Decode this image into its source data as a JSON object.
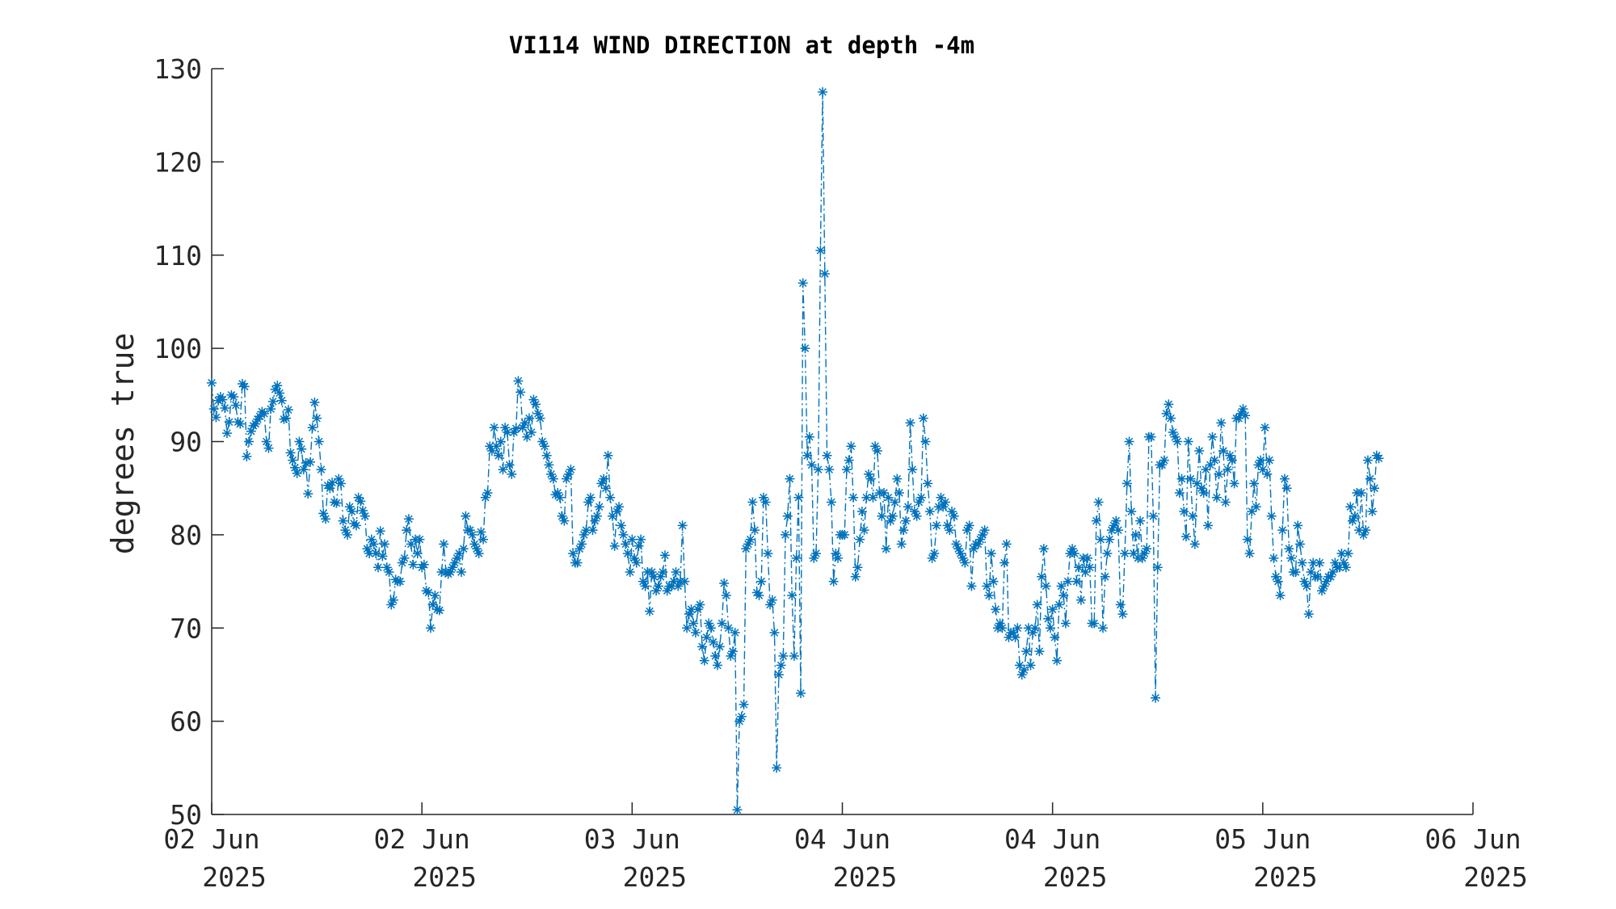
{
  "chart_data": {
    "type": "line",
    "title": "VI114 WIND DIRECTION at depth -4m",
    "xlabel": "",
    "ylabel": "degrees true",
    "ylim": [
      50,
      130
    ],
    "yticks": [
      50,
      60,
      70,
      80,
      90,
      100,
      110,
      120,
      130
    ],
    "xlim": [
      "2025-06-02T00:00",
      "2025-06-06T00:00"
    ],
    "xticks": [
      {
        "t": "2025-06-02T00:00",
        "line1": "02 Jun",
        "line2": "2025"
      },
      {
        "t": "2025-06-02T16:00",
        "line1": "02 Jun",
        "line2": "2025"
      },
      {
        "t": "2025-06-03T08:00",
        "line1": "03 Jun",
        "line2": "2025"
      },
      {
        "t": "2025-06-04T00:00",
        "line1": "04 Jun",
        "line2": "2025"
      },
      {
        "t": "2025-06-04T16:00",
        "line1": "04 Jun",
        "line2": "2025"
      },
      {
        "t": "2025-06-05T08:00",
        "line1": "05 Jun",
        "line2": "2025"
      },
      {
        "t": "2025-06-06T00:00",
        "line1": "06 Jun",
        "line2": "2025"
      }
    ],
    "grid": false,
    "marker": "asterisk",
    "line_style": "dash-dot",
    "color": "#0072BD",
    "series": [
      {
        "x_start": "2025-06-02T00:00",
        "x_step_minutes": 10,
        "values": [
          96.3,
          93.5,
          92.6,
          94.4,
          94.8,
          94.5,
          93.6,
          90.9,
          92.1,
          95.0,
          94.8,
          93.9,
          92.1,
          91.9,
          96.2,
          95.9,
          88.4,
          90.0,
          91.1,
          91.7,
          91.9,
          92.4,
          92.7,
          93.2,
          93.0,
          90.0,
          89.3,
          93.5,
          94.3,
          95.6,
          96.0,
          95.2,
          94.4,
          92.4,
          92.5,
          93.4,
          88.8,
          88.0,
          87.2,
          86.6,
          90.0,
          89.2,
          87.0,
          87.7,
          84.4,
          87.8,
          91.5,
          94.2,
          92.5,
          90.0,
          87.0,
          82.3,
          81.7,
          85.3,
          85.0,
          85.6,
          83.5,
          83.4,
          86.0,
          85.5,
          81.5,
          80.5,
          80.0,
          83.0,
          82.5,
          81.2,
          81.0,
          84.0,
          83.6,
          82.6,
          82.0,
          78.5,
          78.0,
          79.5,
          79.0,
          78.0,
          76.5,
          80.4,
          77.7,
          79.0,
          76.5,
          76.0,
          72.5,
          73.0,
          75.2,
          75.0,
          75.0,
          77.0,
          77.5,
          80.5,
          81.7,
          79.0,
          76.8,
          79.5,
          78.0,
          79.5,
          76.5,
          76.8,
          74.0,
          73.8,
          70.0,
          72.5,
          73.5,
          72.0,
          71.9,
          76.0,
          79.0,
          76.0,
          75.8,
          76.0,
          76.5,
          77.0,
          77.5,
          78.0,
          76.0,
          78.5,
          82.0,
          80.5,
          80.5,
          80.0,
          79.0,
          78.5,
          78.0,
          80.3,
          79.5,
          84.0,
          84.5,
          89.5,
          89.0,
          91.5,
          89.5,
          88.5,
          90.0,
          87.0,
          91.5,
          91.0,
          87.5,
          86.5,
          91.0,
          91.4,
          96.5,
          95.3,
          91.5,
          92.0,
          90.5,
          92.5,
          91.0,
          94.5,
          94.0,
          93.0,
          92.5,
          90.0,
          89.5,
          88.5,
          87.5,
          86.5,
          86.0,
          84.3,
          84.5,
          84.0,
          82.0,
          81.5,
          86.0,
          86.5,
          87.0,
          78.0,
          77.0,
          77.0,
          78.5,
          79.0,
          80.0,
          80.5,
          83.5,
          84.0,
          80.5,
          81.5,
          82.0,
          83.0,
          85.5,
          86.0,
          85.0,
          88.5,
          84.0,
          82.0,
          78.8,
          82.5,
          83.0,
          81.0,
          80.0,
          79.0,
          78.0,
          76.0,
          79.5,
          77.5,
          77.0,
          78.8,
          79.5,
          75.0,
          74.5,
          76.0,
          71.8,
          76.0,
          75.5,
          74.0,
          74.5,
          75.5,
          76.0,
          77.8,
          74.0,
          74.5,
          74.5,
          75.0,
          76.0,
          74.5,
          75.0,
          81.0,
          75.0,
          70.0,
          71.5,
          72.0,
          70.5,
          69.5,
          72.0,
          72.5,
          68.0,
          66.5,
          69.0,
          70.5,
          70.0,
          68.5,
          67.0,
          66.0,
          68.0,
          70.5,
          74.8,
          73.5,
          70.0,
          67.0,
          67.5,
          69.5,
          50.5,
          60.0,
          60.5,
          61.8,
          78.5,
          79.0,
          79.5,
          83.5,
          80.5,
          73.8,
          73.5,
          75.0,
          84.0,
          83.5,
          78.0,
          72.5,
          73.0,
          69.5,
          55.0,
          65.0,
          66.0,
          67.0,
          80.0,
          82.0,
          86.0,
          73.5,
          67.0,
          77.5,
          84.0,
          63.0,
          107.0,
          100.0,
          88.5,
          90.5,
          87.5,
          77.5,
          78.0,
          87.0,
          110.5,
          127.5,
          108.0,
          88.5,
          87.0,
          83.5,
          75.0,
          78.0,
          77.5,
          80.0,
          80.0,
          80.0,
          87.0,
          88.0,
          89.5,
          84.0,
          75.5,
          76.5,
          79.5,
          82.5,
          80.5,
          84.0,
          86.5,
          86.0,
          84.0,
          89.5,
          89.0,
          84.5,
          82.0,
          84.5,
          78.5,
          84.0,
          81.5,
          82.0,
          83.5,
          86.0,
          84.5,
          79.0,
          80.5,
          81.5,
          83.0,
          92.0,
          87.0,
          82.5,
          82.0,
          83.5,
          84.0,
          92.5,
          90.0,
          85.5,
          82.5,
          77.5,
          78.0,
          81.0,
          83.0,
          84.0,
          83.0,
          83.5,
          81.0,
          80.5,
          82.5,
          82.0,
          79.0,
          78.5,
          78.0,
          77.5,
          77.0,
          80.5,
          81.0,
          74.5,
          78.5,
          79.0,
          79.0,
          79.5,
          80.0,
          80.5,
          74.5,
          73.5,
          78.0,
          75.0,
          72.0,
          70.0,
          70.5,
          70.0,
          77.0,
          79.0,
          69.0,
          69.5,
          69.5,
          69.0,
          70.0,
          66.0,
          65.0,
          65.5,
          67.5,
          70.0,
          66.0,
          69.5,
          70.0,
          72.5,
          67.5,
          75.5,
          78.5,
          74.5,
          71.0,
          70.0,
          72.0,
          69.0,
          66.5,
          72.5,
          74.5,
          73.5,
          70.5,
          75.0,
          78.0,
          78.5,
          78.0,
          75.0,
          76.5,
          73.0,
          77.5,
          76.0,
          77.5,
          76.5,
          70.5,
          70.5,
          81.5,
          83.5,
          79.5,
          70.0,
          75.5,
          78.0,
          79.5,
          80.5,
          81.0,
          81.5,
          80.5,
          72.5,
          71.5,
          78.0,
          85.5,
          90.0,
          82.5,
          78.0,
          80.0,
          77.5,
          81.5,
          77.5,
          78.0,
          78.5,
          90.5,
          90.5,
          82.0,
          62.5,
          76.5,
          87.5,
          87.5,
          88.0,
          93.0,
          94.0,
          92.5,
          91.0,
          90.5,
          90.0,
          84.5,
          86.0,
          82.5,
          79.8,
          90.0,
          86.0,
          82.0,
          79.0,
          85.5,
          89.0,
          85.0,
          84.5,
          87.0,
          81.0,
          87.5,
          90.5,
          88.0,
          84.0,
          86.5,
          92.0,
          89.0,
          83.5,
          87.0,
          88.5,
          88.0,
          85.5,
          92.5,
          92.5,
          93.0,
          93.5,
          92.8,
          79.5,
          78.0,
          82.5,
          85.5,
          83.0,
          87.5,
          88.0,
          87.0,
          91.5,
          86.5,
          88.0,
          82.0,
          77.5,
          75.5,
          75.0,
          73.5,
          80.5,
          86.0,
          85.0,
          78.5,
          77.5,
          76.0,
          76.0,
          81.0,
          79.0,
          77.0,
          75.0,
          74.5,
          71.5,
          76.0,
          77.0,
          75.5,
          75.5,
          77.0,
          74.0,
          74.5,
          75.0,
          75.5,
          75.5,
          76.0,
          77.0,
          76.5,
          76.5,
          78.0,
          77.0,
          76.5,
          78.0,
          83.0,
          81.5,
          82.0,
          84.5,
          80.5,
          84.5,
          80.0,
          80.5,
          88.0,
          86.0,
          82.5,
          85.0,
          88.5,
          88.2
        ]
      }
    ]
  }
}
